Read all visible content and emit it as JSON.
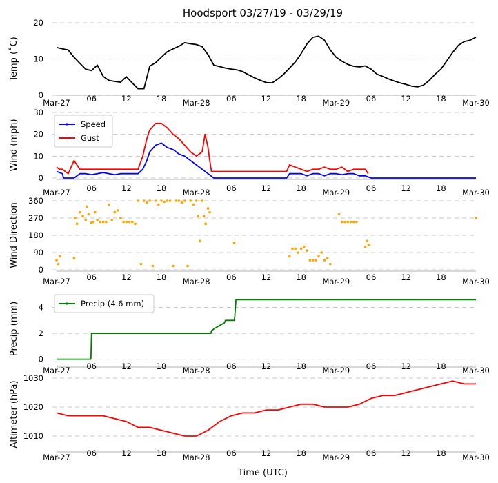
{
  "title": "Hoodsport 03/27/19 - 03/29/19",
  "xlabel": "Time (UTC)",
  "x_ticks": [
    "Mar-27",
    "06",
    "12",
    "18",
    "Mar-28",
    "06",
    "12",
    "18",
    "Mar-29",
    "06",
    "12",
    "18",
    "Mar-30"
  ],
  "x_range_hours": [
    0,
    72
  ],
  "chart_data": [
    {
      "type": "line",
      "ylabel": "Temp ($^\\circ$C)",
      "ylabel_display": "Temp (˚C)",
      "ylim": [
        0,
        20
      ],
      "yticks": [
        0,
        10,
        20
      ],
      "grid": "horizontal-dashed",
      "series": [
        {
          "color": "#000000",
          "x": [
            0,
            1,
            2,
            3,
            4,
            5,
            6,
            7,
            8,
            9,
            10,
            11,
            12,
            13,
            14,
            15,
            16,
            17,
            18,
            19,
            20,
            21,
            22,
            23,
            24,
            25,
            26,
            27,
            28,
            29,
            30,
            31,
            32,
            33,
            34,
            35,
            36,
            37,
            38,
            39,
            40,
            41,
            42,
            43,
            44,
            45,
            46,
            47,
            48,
            49,
            50,
            51,
            52,
            53,
            54,
            55,
            56,
            57,
            58,
            59,
            60,
            61,
            62,
            63,
            64,
            65,
            66,
            67,
            68,
            69,
            70,
            71,
            72
          ],
          "values": [
            13.2,
            12.8,
            12.5,
            10.5,
            8.8,
            7.2,
            6.8,
            8.3,
            5.2,
            4.1,
            3.8,
            3.6,
            5.1,
            3.4,
            1.8,
            1.8,
            8.0,
            9.0,
            10.5,
            12.0,
            12.8,
            13.5,
            14.5,
            14.2,
            14.0,
            13.4,
            11.2,
            8.3,
            7.9,
            7.5,
            7.2,
            7.0,
            6.5,
            5.6,
            4.8,
            4.1,
            3.5,
            3.4,
            4.5,
            5.8,
            7.5,
            9.2,
            11.5,
            14.2,
            16.0,
            16.3,
            15.2,
            12.5,
            10.5,
            9.4,
            8.5,
            8.0,
            7.8,
            8.1,
            7.2,
            5.8,
            5.2,
            4.5,
            3.9,
            3.4,
            3.0,
            2.5,
            2.3,
            2.8,
            4.1,
            5.8,
            7.2,
            9.5,
            11.8,
            13.8,
            14.8,
            15.2,
            16.0
          ]
        }
      ]
    },
    {
      "type": "line",
      "ylabel": "Wind (mph)",
      "ylim": [
        0,
        30
      ],
      "yticks": [
        0,
        10,
        20,
        30
      ],
      "grid": "horizontal-dashed",
      "legend": "upper-left",
      "series": [
        {
          "name": "Speed",
          "color": "#0000ff",
          "x": [
            0,
            1,
            1.2,
            2,
            3,
            4,
            5,
            6,
            7,
            8,
            9,
            10,
            11,
            12,
            13,
            14,
            14.8,
            15.5,
            16,
            17,
            18,
            19,
            20,
            21,
            22,
            23,
            24,
            25,
            26,
            26.5,
            27,
            39.5,
            40,
            41,
            42,
            43,
            44,
            45,
            46,
            47,
            48,
            49,
            50,
            51,
            52,
            53,
            54,
            72
          ],
          "values": [
            3,
            2,
            0,
            0,
            0,
            2,
            2,
            1.5,
            2,
            2.5,
            2,
            1.5,
            2,
            2,
            2,
            2,
            4,
            8,
            12,
            15,
            16,
            14,
            13,
            11,
            10,
            8,
            6,
            4,
            2,
            1,
            0,
            0,
            2,
            2,
            2,
            1,
            2,
            2,
            1,
            2,
            2,
            1.5,
            2,
            2,
            1,
            1,
            0,
            0
          ]
        },
        {
          "name": "Gust",
          "color": "#ff0000",
          "x": [
            0,
            0.5,
            1,
            2,
            3,
            4,
            5,
            6,
            7,
            8,
            9,
            10,
            11,
            12,
            13,
            14,
            14.8,
            15.5,
            16,
            17,
            18,
            19,
            20,
            21,
            22,
            23,
            24,
            25,
            25.5,
            26,
            26.3,
            26.6,
            39.5,
            40,
            41,
            42,
            43,
            44,
            45,
            46,
            47,
            48,
            49,
            50,
            51,
            52,
            53,
            53.5
          ],
          "values": [
            5,
            4,
            4,
            2,
            8,
            4,
            4,
            4,
            4,
            4,
            4,
            4,
            4,
            4,
            4,
            4,
            10,
            18,
            22,
            25,
            25,
            23,
            20,
            18,
            15,
            12,
            10,
            12,
            20,
            14,
            8,
            3,
            3,
            6,
            5,
            4,
            3,
            4,
            4,
            5,
            4,
            4,
            5,
            3,
            4,
            4,
            4,
            2
          ]
        }
      ]
    },
    {
      "type": "scatter",
      "ylabel": "Wind Direction",
      "ylim": [
        0,
        360
      ],
      "yticks": [
        0,
        90,
        180,
        270,
        360
      ],
      "grid": "horizontal-dashed",
      "series": [
        {
          "color": "#ffa500",
          "x": [
            0,
            0.3,
            0.6,
            3,
            3.2,
            3.5,
            4,
            4.5,
            5,
            5.2,
            5.5,
            6,
            6.3,
            6.6,
            7,
            7.5,
            8,
            8.5,
            9,
            9.5,
            10,
            10.5,
            11,
            11.5,
            12,
            12.5,
            13,
            13.5,
            14,
            14.5,
            15,
            15.5,
            16,
            16.5,
            17,
            17.5,
            18,
            18.5,
            19,
            19.5,
            20,
            20.5,
            21,
            21.5,
            22,
            22.5,
            23,
            23.5,
            24,
            24.3,
            24.6,
            25,
            25.3,
            25.6,
            26,
            26.3,
            30.5,
            40,
            40.5,
            41,
            41.5,
            42,
            42.5,
            43,
            43.5,
            44,
            44.5,
            45,
            45.5,
            46,
            46.5,
            47,
            48.5,
            49,
            49.5,
            50,
            50.5,
            51,
            51.5,
            53,
            53.3,
            53.6,
            72
          ],
          "values": [
            50,
            30,
            70,
            60,
            270,
            240,
            300,
            280,
            260,
            330,
            290,
            245,
            250,
            300,
            260,
            250,
            250,
            250,
            340,
            260,
            300,
            310,
            270,
            250,
            250,
            250,
            250,
            240,
            360,
            30,
            360,
            350,
            360,
            20,
            360,
            340,
            360,
            355,
            360,
            360,
            20,
            360,
            360,
            350,
            360,
            20,
            360,
            340,
            360,
            280,
            150,
            360,
            280,
            240,
            320,
            300,
            140,
            70,
            110,
            110,
            90,
            110,
            120,
            100,
            50,
            50,
            50,
            70,
            90,
            50,
            60,
            30,
            290,
            250,
            250,
            250,
            250,
            250,
            250,
            120,
            150,
            130,
            270
          ]
        }
      ]
    },
    {
      "type": "line",
      "ylabel": "Precip (mm)",
      "ylim": [
        -0.5,
        5.2
      ],
      "yticks": [
        0,
        2,
        4
      ],
      "grid": "horizontal-dashed",
      "legend": "upper-left",
      "series": [
        {
          "name": "Precip (4.6 mm)",
          "color": "#008000",
          "x": [
            0,
            5.9,
            6,
            26.5,
            26.6,
            27.2,
            28,
            28.8,
            29,
            30.5,
            30.6,
            30.8,
            72
          ],
          "values": [
            0,
            0,
            2.0,
            2.0,
            2.2,
            2.4,
            2.6,
            2.8,
            3.0,
            3.0,
            3.3,
            4.6,
            4.6
          ]
        }
      ]
    },
    {
      "type": "line",
      "ylabel": "Altimeter (hPa)",
      "ylim": [
        1005,
        1030
      ],
      "yticks": [
        1010,
        1020,
        1030
      ],
      "grid": "horizontal-dashed",
      "series": [
        {
          "color": "#ff0000",
          "x": [
            0,
            2,
            4,
            6,
            8,
            10,
            12,
            14,
            16,
            18,
            20,
            22,
            24,
            26,
            28,
            30,
            32,
            34,
            36,
            38,
            40,
            42,
            44,
            46,
            48,
            50,
            52,
            54,
            56,
            58,
            60,
            62,
            64,
            66,
            68,
            70,
            72
          ],
          "values": [
            1018,
            1017,
            1017,
            1017,
            1017,
            1016,
            1015,
            1013,
            1013,
            1012,
            1011,
            1010,
            1010,
            1012,
            1015,
            1017,
            1018,
            1018,
            1019,
            1019,
            1020,
            1021,
            1021,
            1020,
            1020,
            1020,
            1021,
            1023,
            1024,
            1024,
            1025,
            1026,
            1027,
            1028,
            1029,
            1028,
            1028
          ]
        }
      ]
    }
  ]
}
